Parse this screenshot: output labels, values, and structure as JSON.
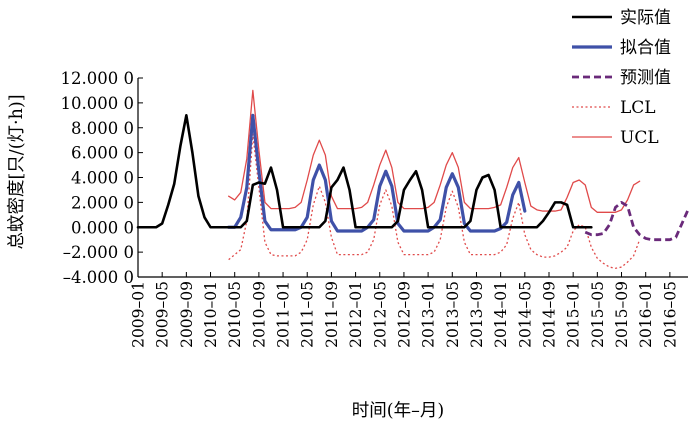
{
  "chart_data": {
    "type": "line",
    "xlabel": "时间(年–月)",
    "ylabel": "总蚊密度[只/(灯·h)]",
    "ylim": [
      -4,
      12
    ],
    "yticks": [
      {
        "value": 12,
        "label": "12.000 0"
      },
      {
        "value": 10,
        "label": "10.000 0"
      },
      {
        "value": 8,
        "label": "8.000 0"
      },
      {
        "value": 6,
        "label": "6.000 0"
      },
      {
        "value": 4,
        "label": "4.000 0"
      },
      {
        "value": 2,
        "label": "2.000 0"
      },
      {
        "value": 0,
        "label": "0.000 0"
      },
      {
        "value": -2,
        "label": "–2.000 0"
      },
      {
        "value": -4,
        "label": "–4.000 0"
      }
    ],
    "xticks": [
      {
        "index": 0,
        "label": "2009–01"
      },
      {
        "index": 4,
        "label": "2009–05"
      },
      {
        "index": 8,
        "label": "2009–09"
      },
      {
        "index": 12,
        "label": "2010–01"
      },
      {
        "index": 16,
        "label": "2010–05"
      },
      {
        "index": 20,
        "label": "2010–09"
      },
      {
        "index": 24,
        "label": "2011–01"
      },
      {
        "index": 28,
        "label": "2011–05"
      },
      {
        "index": 32,
        "label": "2011–09"
      },
      {
        "index": 36,
        "label": "2012–01"
      },
      {
        "index": 40,
        "label": "2012–05"
      },
      {
        "index": 44,
        "label": "2012–09"
      },
      {
        "index": 48,
        "label": "2013–01"
      },
      {
        "index": 52,
        "label": "2013–05"
      },
      {
        "index": 56,
        "label": "2013–09"
      },
      {
        "index": 60,
        "label": "2014–01"
      },
      {
        "index": 64,
        "label": "2014–05"
      },
      {
        "index": 68,
        "label": "2014–09"
      },
      {
        "index": 72,
        "label": "2015–01"
      },
      {
        "index": 76,
        "label": "2015–05"
      },
      {
        "index": 80,
        "label": "2015–09"
      },
      {
        "index": 84,
        "label": "2016–01"
      },
      {
        "index": 88,
        "label": "2016–05"
      }
    ],
    "legend_position": "top-right",
    "series": [
      {
        "name": "实际值",
        "color": "#000000",
        "style": "solid",
        "width": 2.6,
        "start": 0,
        "values": [
          0,
          0,
          0,
          0,
          0.3,
          1.8,
          3.5,
          6.5,
          9,
          6,
          2.5,
          0.8,
          0,
          0,
          0,
          0,
          0,
          0,
          0.5,
          3.4,
          3.6,
          3.5,
          4.8,
          3,
          0,
          0,
          0,
          0,
          0,
          0,
          0,
          0.5,
          3.2,
          3.8,
          4.8,
          3,
          0,
          0,
          0,
          0,
          0,
          0,
          0,
          0.5,
          3,
          3.8,
          4.5,
          3,
          0,
          0,
          0,
          0,
          0,
          0,
          0,
          0.5,
          3,
          4,
          4.2,
          3,
          0,
          0,
          0,
          0,
          0,
          0,
          0,
          0.5,
          1.2,
          2,
          2,
          1.8,
          0,
          0,
          0,
          0
        ]
      },
      {
        "name": "拟合值",
        "color": "#3f51a8",
        "style": "solid",
        "width": 3.2,
        "start": 15,
        "values": [
          0,
          0,
          0.8,
          3.2,
          9,
          4.5,
          0.5,
          -0.2,
          -0.2,
          -0.2,
          -0.2,
          -0.2,
          0,
          0.8,
          3.8,
          5,
          3.8,
          0.5,
          -0.3,
          -0.3,
          -0.3,
          -0.3,
          -0.3,
          0,
          0.6,
          3.3,
          4.5,
          3.3,
          0.3,
          -0.3,
          -0.3,
          -0.3,
          -0.3,
          -0.3,
          0,
          0.6,
          3.2,
          4.3,
          3.2,
          0.3,
          -0.3,
          -0.3,
          -0.3,
          -0.3,
          -0.3,
          -0.1,
          0.4,
          2.6,
          3.6,
          1.3
        ]
      },
      {
        "name": "预测值",
        "color": "#6a2a7a",
        "style": "dashed",
        "width": 2.8,
        "start": 74,
        "values": [
          -0.4,
          -0.6,
          -0.6,
          -0.5,
          0.2,
          1.6,
          2,
          1.7,
          0,
          -0.6,
          -0.9,
          -1,
          -1,
          -1,
          -1,
          -0.8,
          0.3,
          1.4
        ]
      },
      {
        "name": "LCL",
        "color": "#e04a4a",
        "style": "dotted",
        "width": 1.3,
        "start": 15,
        "values": [
          -2.6,
          -2.2,
          -1.8,
          0.5,
          7.5,
          3.2,
          -1.2,
          -2.2,
          -2.3,
          -2.3,
          -2.3,
          -2.3,
          -2,
          -1,
          1.8,
          3.3,
          2,
          -0.8,
          -2.2,
          -2.2,
          -2.2,
          -2.2,
          -2.2,
          -2,
          -1,
          1.8,
          3,
          1.7,
          -1.2,
          -2.2,
          -2.2,
          -2.2,
          -2.2,
          -2.2,
          -2,
          -1,
          1.6,
          2.9,
          1.6,
          -1.2,
          -2.2,
          -2.2,
          -2.2,
          -2.2,
          -2.2,
          -2,
          -1.4,
          0.7,
          2,
          -0.6,
          -1.8,
          -2.2,
          -2.4,
          -2.4,
          -2.3,
          -2,
          -1.6,
          -0.3,
          0.2,
          0,
          -1.6,
          -2.5,
          -2.9,
          -3.2,
          -3.3,
          -3.2,
          -2.8,
          -2.3,
          -1
        ]
      },
      {
        "name": "UCL",
        "color": "#e04a4a",
        "style": "solid",
        "width": 1.3,
        "start": 15,
        "values": [
          2.5,
          2.2,
          2.8,
          5.5,
          11,
          6.2,
          2,
          1.5,
          1.5,
          1.5,
          1.5,
          1.6,
          2,
          3.8,
          5.8,
          7,
          5.8,
          2.5,
          1.5,
          1.5,
          1.5,
          1.5,
          1.6,
          2,
          3.4,
          5,
          6.2,
          4.8,
          2,
          1.5,
          1.5,
          1.5,
          1.5,
          1.6,
          2,
          3.4,
          5,
          6,
          4.8,
          2,
          1.5,
          1.5,
          1.5,
          1.5,
          1.6,
          1.8,
          3.2,
          4.8,
          5.6,
          3.6,
          1.7,
          1.4,
          1.3,
          1.3,
          1.3,
          1.4,
          2.4,
          3.6,
          3.8,
          3.4,
          1.6,
          1.2,
          1.2,
          1.2,
          1.2,
          1.4,
          2.2,
          3.4,
          3.7
        ]
      }
    ]
  }
}
